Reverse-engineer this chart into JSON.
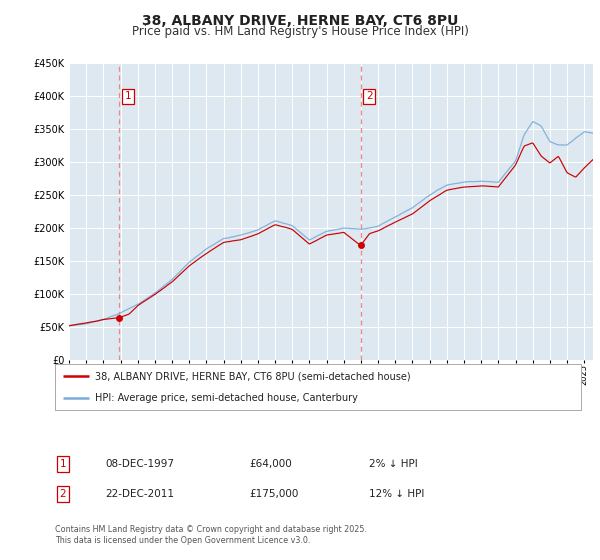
{
  "title": "38, ALBANY DRIVE, HERNE BAY, CT6 8PU",
  "subtitle": "Price paid vs. HM Land Registry's House Price Index (HPI)",
  "title_fontsize": 10,
  "subtitle_fontsize": 8.5,
  "bg_color": "#ffffff",
  "plot_bg_color": "#dde8f0",
  "grid_color": "#ffffff",
  "sale1_date": 1997.94,
  "sale1_value": 64000,
  "sale1_year_label": "08-DEC-1997",
  "sale1_price_label": "£64,000",
  "sale1_hpi_label": "2% ↓ HPI",
  "sale2_date": 2011.98,
  "sale2_value": 175000,
  "sale2_year_label": "22-DEC-2011",
  "sale2_price_label": "£175,000",
  "sale2_hpi_label": "12% ↓ HPI",
  "ylim_max": 450000,
  "xlim_start": 1995.0,
  "xlim_end": 2025.5,
  "legend_line1": "38, ALBANY DRIVE, HERNE BAY, CT6 8PU (semi-detached house)",
  "legend_line2": "HPI: Average price, semi-detached house, Canterbury",
  "footer": "Contains HM Land Registry data © Crown copyright and database right 2025.\nThis data is licensed under the Open Government Licence v3.0.",
  "red_color": "#cc0000",
  "blue_color": "#7aacda",
  "vline_color": "#ee8888",
  "label_box_color": "#cc0000",
  "hpi_key_years": [
    1995.0,
    1996.0,
    1997.0,
    1998.0,
    1999.0,
    2000.0,
    2001.0,
    2002.0,
    2003.0,
    2004.0,
    2005.0,
    2006.0,
    2007.0,
    2008.0,
    2009.0,
    2010.0,
    2011.0,
    2012.0,
    2013.0,
    2014.0,
    2015.0,
    2016.0,
    2017.0,
    2018.0,
    2019.0,
    2020.0,
    2021.0,
    2021.5,
    2022.0,
    2022.5,
    2023.0,
    2023.5,
    2024.0,
    2024.5,
    2025.0,
    2025.5
  ],
  "hpi_key_vals": [
    52000,
    55000,
    62000,
    72000,
    85000,
    102000,
    122000,
    148000,
    168000,
    185000,
    190000,
    198000,
    212000,
    205000,
    183000,
    196000,
    201000,
    199000,
    204000,
    218000,
    232000,
    252000,
    267000,
    272000,
    274000,
    272000,
    305000,
    345000,
    365000,
    358000,
    335000,
    330000,
    330000,
    340000,
    350000,
    348000
  ],
  "prop_key_years": [
    1995.0,
    1996.5,
    1997.0,
    1997.94,
    1998.5,
    1999.0,
    2000.0,
    2001.0,
    2002.0,
    2003.0,
    2004.0,
    2005.0,
    2006.0,
    2007.0,
    2008.0,
    2009.0,
    2010.0,
    2011.0,
    2011.98,
    2012.5,
    2013.0,
    2014.0,
    2015.0,
    2016.0,
    2017.0,
    2018.0,
    2019.0,
    2020.0,
    2021.0,
    2021.5,
    2022.0,
    2022.5,
    2023.0,
    2023.5,
    2024.0,
    2024.5,
    2025.0,
    2025.5
  ],
  "prop_key_vals": [
    52000,
    58000,
    61000,
    64000,
    69000,
    82000,
    99000,
    118000,
    143000,
    162000,
    179000,
    183000,
    192000,
    206000,
    199000,
    177000,
    191000,
    195000,
    175000,
    193000,
    197000,
    210000,
    222000,
    242000,
    258000,
    263000,
    265000,
    263000,
    296000,
    325000,
    330000,
    310000,
    300000,
    310000,
    285000,
    278000,
    292000,
    305000
  ]
}
